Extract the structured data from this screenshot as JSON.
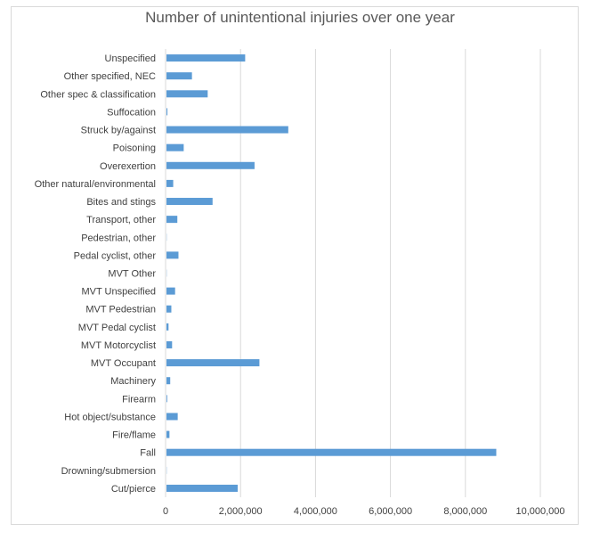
{
  "chart_data": {
    "type": "bar",
    "orientation": "horizontal",
    "title": "Number of unintentional injuries over one year",
    "xlabel": "",
    "ylabel": "",
    "xlim": [
      0,
      10000000
    ],
    "ticks": [
      0,
      2000000,
      4000000,
      6000000,
      8000000,
      10000000
    ],
    "tick_labels": [
      "0",
      "2,000,000",
      "4,000,000",
      "6,000,000",
      "8,000,000",
      "10,000,000"
    ],
    "grid": true,
    "legend": "none",
    "bar_color": "#5b9bd5",
    "grid_color": "#d9d9d9",
    "categories": [
      "Unspecified",
      "Other specified, NEC",
      "Other spec & classification",
      "Suffocation",
      "Struck by/against",
      "Poisoning",
      "Overexertion",
      "Other natural/environmental",
      "Bites and stings",
      "Transport, other",
      "Pedestrian, other",
      "Pedal cyclist, other",
      "MVT Other",
      "MVT Unspecified",
      "MVT Pedestrian",
      "MVT Pedal cyclist",
      "MVT Motorcyclist",
      "MVT Occupant",
      "Machinery",
      "Firearm",
      "Hot object/substance",
      "Fire/flame",
      "Fall",
      "Drowning/submersion",
      "Cut/pierce"
    ],
    "values": [
      2100000,
      680000,
      1100000,
      25000,
      3250000,
      460000,
      2350000,
      180000,
      1230000,
      290000,
      5000,
      320000,
      5000,
      230000,
      130000,
      55000,
      150000,
      2480000,
      100000,
      20000,
      300000,
      80000,
      8800000,
      5000,
      1900000
    ]
  }
}
